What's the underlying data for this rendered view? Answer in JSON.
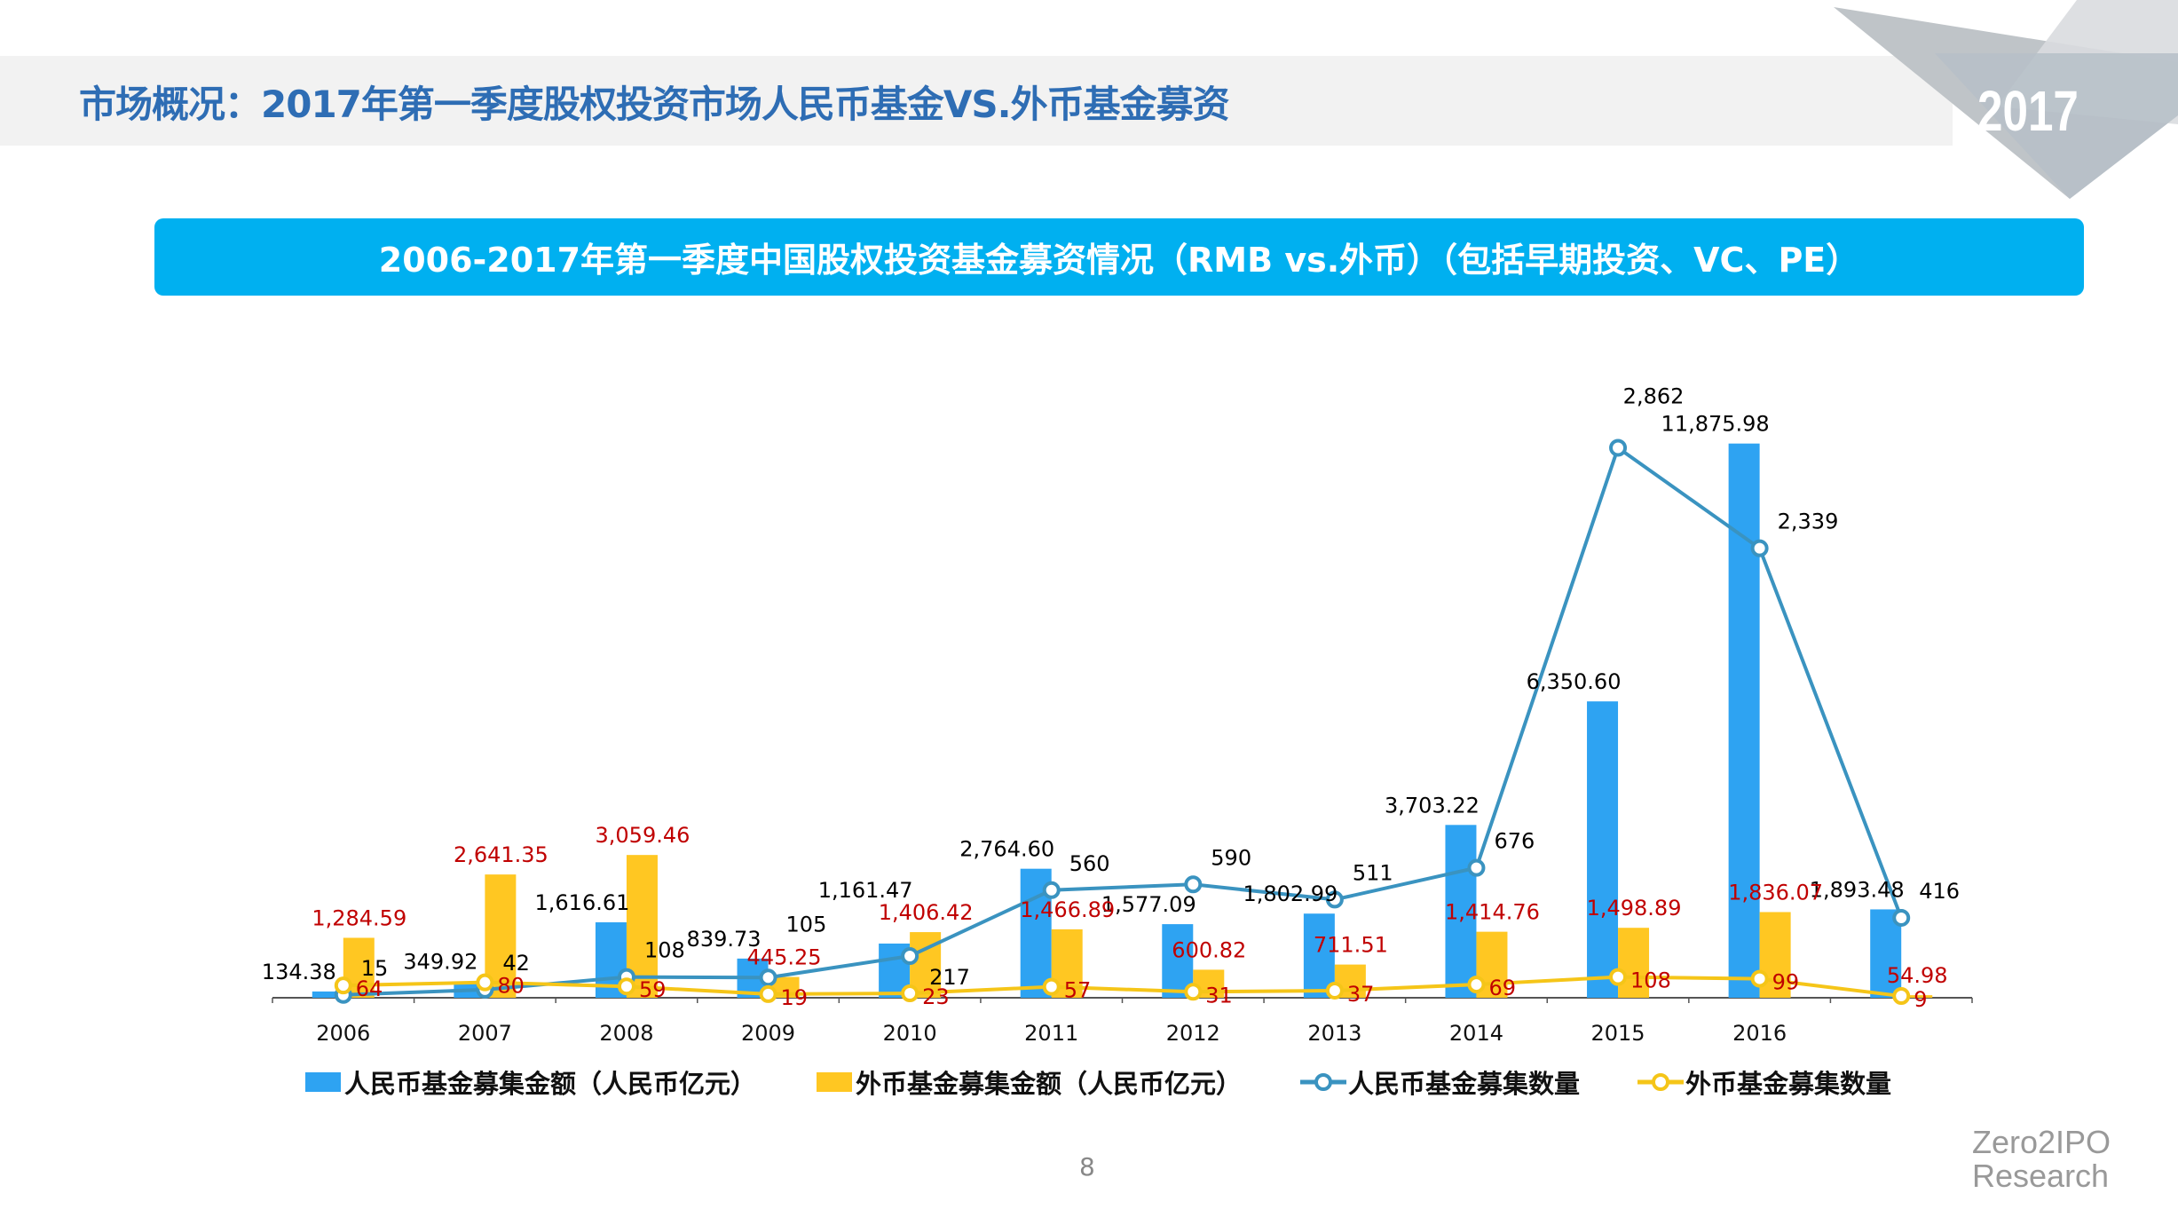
{
  "header": {
    "title": "市场概况：2017年第一季度股权投资市场人民币基金VS.外币基金募资",
    "year_badge": "2017"
  },
  "banner": {
    "title": "2006-2017年第一季度中国股权投资基金募资情况（RMB vs.外币）（包括早期投资、VC、PE）"
  },
  "footer": {
    "page_number": "8",
    "logo_line1": "Zero2IPO",
    "logo_line2": "Research"
  },
  "colors": {
    "rmb_amount": "#2ea3f2",
    "fx_amount": "#ffc722",
    "rmb_count": "#3a93c0",
    "fx_count": "#f5c518",
    "rmb_label": "#000000",
    "fx_label": "#c00000",
    "banner": "#00b0f0",
    "title": "#2e6db4"
  },
  "chart_data": {
    "type": "bar",
    "title": "2006-2017年第一季度中国股权投资基金募资情况（RMB vs.外币）（包括早期投资、VC、PE）",
    "categories": [
      "2006",
      "2007",
      "2008",
      "2009",
      "2010",
      "2011",
      "2012",
      "2013",
      "2014",
      "2015",
      "2016",
      ""
    ],
    "grid": false,
    "legend_position": "bottom",
    "y_axis_primary": {
      "range": [
        0,
        14000
      ],
      "visible": false
    },
    "y_axis_secondary": {
      "range": [
        0,
        3400
      ],
      "visible": false
    },
    "series": [
      {
        "name": "人民币基金募集金额（人民币亿元）",
        "type": "bar",
        "axis": "primary",
        "values": [
          134.38,
          349.92,
          1616.61,
          839.73,
          1161.47,
          2764.6,
          1577.09,
          1802.99,
          3703.22,
          6350.6,
          11875.98,
          1893.48
        ],
        "labels": [
          "134.38",
          "349.92",
          "1,616.61",
          "839.73",
          "1,161.47",
          "2,764.60",
          "1,577.09",
          "1,802.99",
          "3,703.22",
          "6,350.60",
          "11,875.98",
          "1,893.48"
        ]
      },
      {
        "name": "外币基金募集金额（人民币亿元）",
        "type": "bar",
        "axis": "primary",
        "values": [
          1284.59,
          2641.35,
          3059.46,
          445.25,
          1406.42,
          1466.89,
          600.82,
          711.51,
          1414.76,
          1498.89,
          1836.07,
          54.98
        ],
        "labels": [
          "1,284.59",
          "2,641.35",
          "3,059.46",
          "445.25",
          "1,406.42",
          "1,466.89",
          "600.82",
          "711.51",
          "1,414.76",
          "1,498.89",
          "1,836.07",
          "54.98"
        ]
      },
      {
        "name": "人民币基金募集数量",
        "type": "line",
        "axis": "secondary",
        "values": [
          15,
          42,
          108,
          105,
          217,
          560,
          590,
          511,
          676,
          2862,
          2339,
          416
        ],
        "labels": [
          "15",
          "42",
          "108",
          "105",
          "217",
          "560",
          "590",
          "511",
          "676",
          "2,862",
          "2,339",
          "416"
        ]
      },
      {
        "name": "外币基金募集数量",
        "type": "line",
        "axis": "secondary",
        "values": [
          64,
          80,
          59,
          19,
          23,
          57,
          31,
          37,
          69,
          108,
          99,
          9
        ],
        "labels": [
          "64",
          "80",
          "59",
          "19",
          "23",
          "57",
          "31",
          "37",
          "69",
          "108",
          "99",
          "9"
        ]
      }
    ]
  }
}
